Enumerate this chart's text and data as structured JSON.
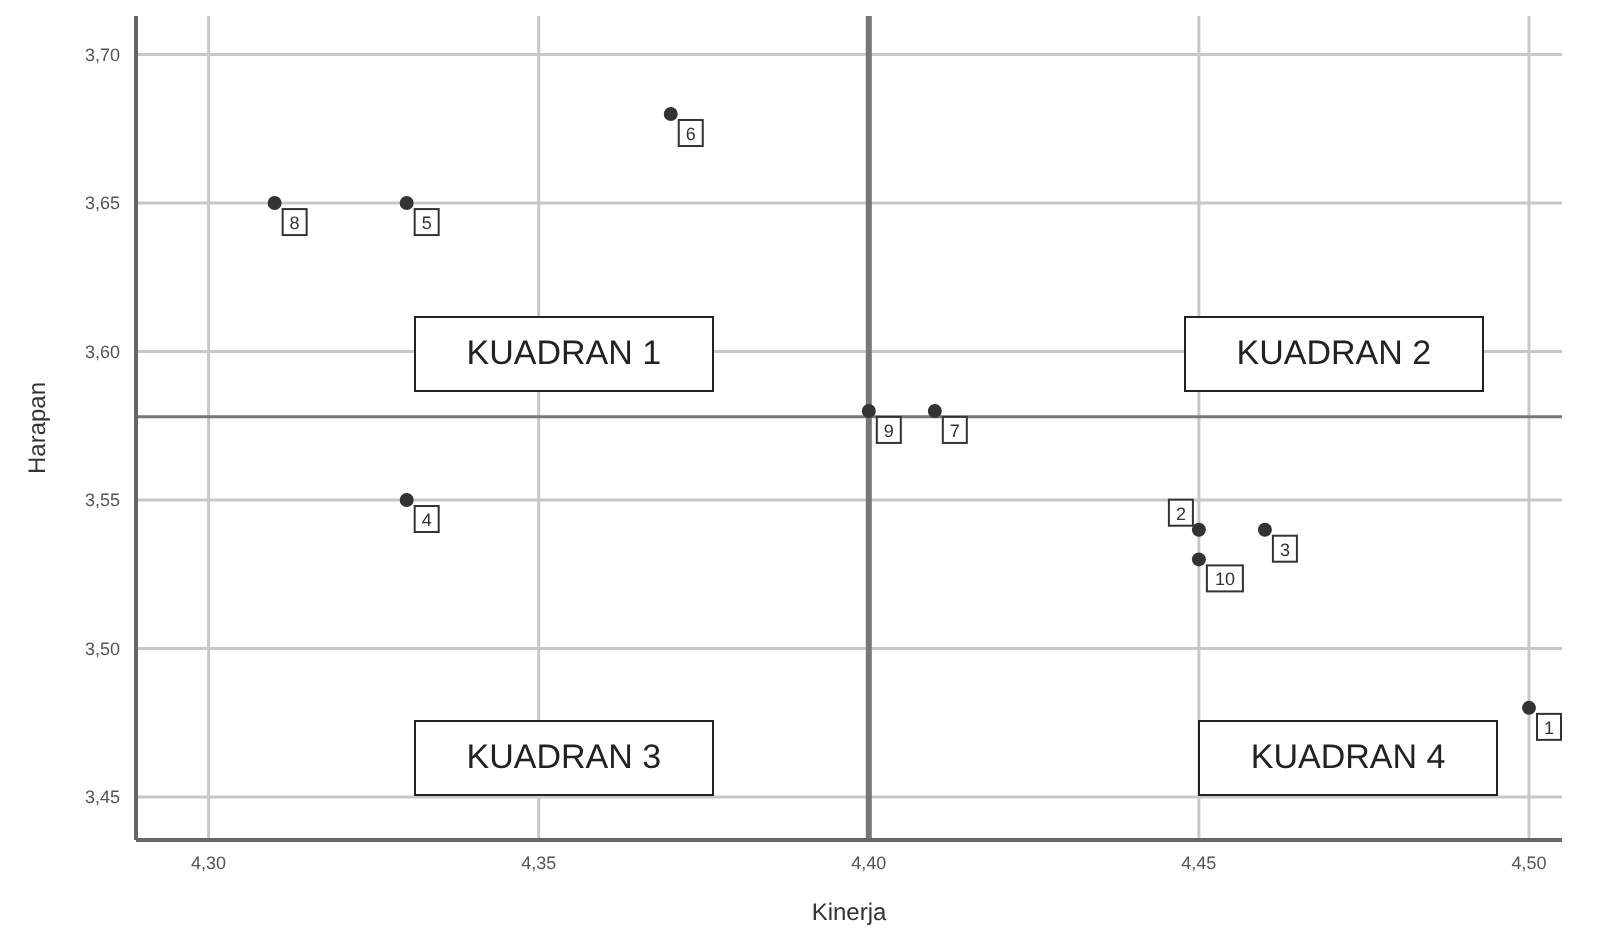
{
  "chart_data": {
    "type": "scatter",
    "xlabel": "Kinerja",
    "ylabel": "Harapan",
    "x": [
      4.5,
      4.45,
      4.46,
      4.33,
      4.33,
      4.37,
      4.41,
      4.31,
      4.4,
      4.45
    ],
    "values": [
      3.48,
      3.54,
      3.54,
      3.55,
      3.65,
      3.68,
      3.58,
      3.65,
      3.58,
      3.53
    ],
    "color": "#333333",
    "marker": "circle",
    "grid": true,
    "xlim": [
      4.289,
      4.505
    ],
    "ylim": [
      3.4355,
      3.713
    ],
    "xticks": [
      {
        "value": 4.3,
        "label": "4,30"
      },
      {
        "value": 4.35,
        "label": "4,35"
      },
      {
        "value": 4.4,
        "label": "4,40"
      },
      {
        "value": 4.45,
        "label": "4,45"
      },
      {
        "value": 4.5,
        "label": "4,50"
      }
    ],
    "yticks": [
      {
        "value": 3.45,
        "label": "3,45"
      },
      {
        "value": 3.5,
        "label": "3,50"
      },
      {
        "value": 3.55,
        "label": "3,55"
      },
      {
        "value": 3.6,
        "label": "3,60"
      },
      {
        "value": 3.65,
        "label": "3,65"
      },
      {
        "value": 3.7,
        "label": "3,70"
      }
    ],
    "ref_lines": [
      {
        "axis": "x",
        "value": 4.4
      },
      {
        "axis": "y",
        "value": 3.578
      }
    ],
    "annotations": [
      "KUADRAN 1",
      "KUADRAN 2",
      "KUADRAN 3",
      "KUADRAN 4",
      {
        "text": "1",
        "x": 4.5,
        "y": 3.48
      },
      {
        "text": "2",
        "x": 4.45,
        "y": 3.54
      },
      {
        "text": "3",
        "x": 4.46,
        "y": 3.54
      },
      {
        "text": "4",
        "x": 4.33,
        "y": 3.55
      },
      {
        "text": "5",
        "x": 4.33,
        "y": 3.65
      },
      {
        "text": "6",
        "x": 4.37,
        "y": 3.68
      },
      {
        "text": "7",
        "x": 4.41,
        "y": 3.58
      },
      {
        "text": "8",
        "x": 4.31,
        "y": 3.65
      },
      {
        "text": "9",
        "x": 4.4,
        "y": 3.58
      },
      {
        "text": "10",
        "x": 4.45,
        "y": 3.53
      }
    ]
  }
}
